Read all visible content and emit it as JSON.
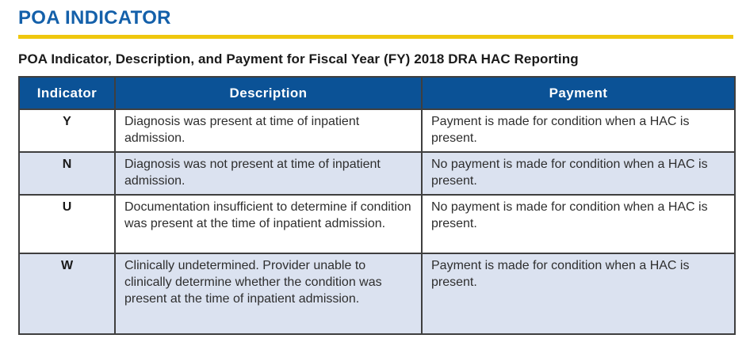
{
  "page": {
    "title": "POA INDICATOR",
    "subtitle": "POA Indicator, Description, and Payment for Fiscal Year (FY) 2018 DRA HAC Reporting"
  },
  "colors": {
    "title_blue": "#1460AA",
    "rule_yellow": "#EFC70E",
    "header_bg": "#0B5296",
    "header_text": "#FFFFFF",
    "row_alt_bg": "#DBE2F0",
    "border": "#3F3F3F",
    "text": "#2E2E2E",
    "text_strong": "#1A1A1A"
  },
  "table": {
    "columns": [
      "Indicator",
      "Description",
      "Payment"
    ],
    "rows": [
      {
        "indicator": "Y",
        "description": "Diagnosis was present at time of inpatient admission.",
        "payment": "Payment is made for condition when a HAC is present."
      },
      {
        "indicator": "N",
        "description": "Diagnosis was not present at time of inpatient admission.",
        "payment": "No payment is made for condition when a HAC is present."
      },
      {
        "indicator": "U",
        "description": "Documentation insufficient to determine if condition was present at the time of inpatient admission.",
        "payment": "No payment is made for condition when a HAC is present."
      },
      {
        "indicator": "W",
        "description": "Clinically undetermined. Provider unable to clinically determine whether the condition was present at the time of inpatient admission.",
        "payment": "Payment is made for condition when a HAC is present."
      }
    ]
  }
}
